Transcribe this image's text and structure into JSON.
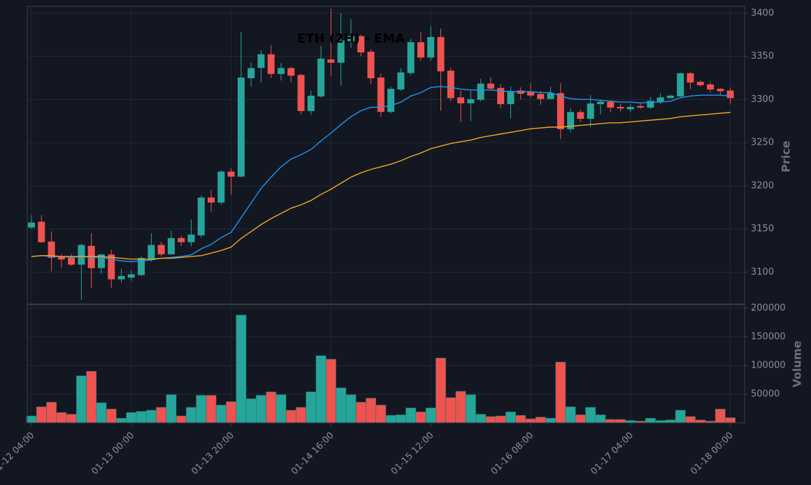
{
  "chart_data": {
    "type": "candlestick",
    "title": "ETH (2H) - EMA",
    "categories": [
      "01-12 04:00",
      null,
      null,
      null,
      null,
      null,
      null,
      null,
      null,
      null,
      "01-13 00:00",
      null,
      null,
      null,
      null,
      null,
      null,
      null,
      null,
      null,
      "01-13 20:00",
      null,
      null,
      null,
      null,
      null,
      null,
      null,
      null,
      null,
      "01-14 16:00",
      null,
      null,
      null,
      null,
      null,
      null,
      null,
      null,
      null,
      "01-15 12:00",
      null,
      null,
      null,
      null,
      null,
      null,
      null,
      null,
      null,
      "01-16 08:00",
      null,
      null,
      null,
      null,
      null,
      null,
      null,
      null,
      null,
      "01-17 04:00",
      null,
      null,
      null,
      null,
      null,
      null,
      null,
      null,
      null,
      "01-18 00:00"
    ],
    "open": [
      3152,
      3158,
      3135,
      3117,
      3116,
      3109,
      3130,
      3105,
      3120,
      3092,
      3094,
      3097,
      3116,
      3131,
      3121,
      3139,
      3135,
      3143,
      3186,
      3181,
      3216,
      3211,
      3325,
      3337,
      3352,
      3330,
      3336,
      3328,
      3287,
      3304,
      3346,
      3343,
      3368,
      3373,
      3355,
      3325,
      3286,
      3312,
      3331,
      3366,
      3349,
      3372,
      3333,
      3302,
      3296,
      3300,
      3318,
      3313,
      3295,
      3310,
      3308,
      3306,
      3301,
      3307,
      3266,
      3285,
      3278,
      3295,
      3297,
      3291,
      3289,
      3292,
      3291,
      3298,
      3302,
      3304,
      3330,
      3320,
      3317,
      3312,
      3310
    ],
    "high": [
      3166,
      3166,
      3147,
      3121,
      3121,
      3133,
      3145,
      3121,
      3126,
      3104,
      3102,
      3118,
      3145,
      3135,
      3148,
      3142,
      3161,
      3189,
      3195,
      3218,
      3220,
      3378,
      3343,
      3357,
      3363,
      3342,
      3338,
      3330,
      3310,
      3362,
      3405,
      3400,
      3393,
      3375,
      3358,
      3330,
      3315,
      3336,
      3370,
      3378,
      3385,
      3382,
      3337,
      3310,
      3310,
      3324,
      3326,
      3318,
      3315,
      3314,
      3319,
      3310,
      3315,
      3319,
      3290,
      3288,
      3305,
      3300,
      3299,
      3295,
      3295,
      3295,
      3303,
      3307,
      3306,
      3331,
      3332,
      3322,
      3320,
      3313,
      3314
    ],
    "low": [
      3150,
      3134,
      3101,
      3105,
      3107,
      3068,
      3082,
      3098,
      3082,
      3088,
      3090,
      3095,
      3112,
      3118,
      3120,
      3130,
      3130,
      3140,
      3170,
      3178,
      3190,
      3210,
      3315,
      3320,
      3325,
      3322,
      3320,
      3283,
      3282,
      3302,
      3327,
      3316,
      3360,
      3350,
      3318,
      3280,
      3284,
      3310,
      3328,
      3345,
      3345,
      3287,
      3298,
      3274,
      3275,
      3298,
      3310,
      3290,
      3278,
      3300,
      3302,
      3294,
      3300,
      3254,
      3262,
      3274,
      3268,
      3283,
      3285,
      3286,
      3285,
      3289,
      3289,
      3295,
      3302,
      3302,
      3312,
      3315,
      3308,
      3305,
      3295
    ],
    "close": [
      3157,
      3135,
      3117,
      3115,
      3109,
      3131,
      3105,
      3120,
      3092,
      3095,
      3097,
      3116,
      3131,
      3121,
      3139,
      3135,
      3143,
      3186,
      3181,
      3216,
      3211,
      3325,
      3336,
      3352,
      3330,
      3336,
      3328,
      3287,
      3304,
      3347,
      3343,
      3368,
      3373,
      3355,
      3325,
      3286,
      3312,
      3331,
      3366,
      3349,
      3372,
      3333,
      3302,
      3296,
      3300,
      3318,
      3313,
      3295,
      3309,
      3307,
      3305,
      3301,
      3307,
      3266,
      3285,
      3278,
      3295,
      3297,
      3291,
      3290,
      3291,
      3291,
      3298,
      3302,
      3304,
      3330,
      3320,
      3317,
      3312,
      3310,
      3302
    ],
    "up_color": "#26a69a",
    "down_color": "#ef5350",
    "lines": [
      {
        "color": "#2196f3",
        "values": [
          3118,
          3119,
          3118,
          3118,
          3117,
          3118,
          3117,
          3117,
          3115,
          3113,
          3112,
          3113,
          3114,
          3116,
          3117,
          3118,
          3120,
          3127,
          3132,
          3140,
          3146,
          3163,
          3180,
          3197,
          3210,
          3222,
          3231,
          3236,
          3242,
          3252,
          3261,
          3271,
          3280,
          3287,
          3291,
          3291,
          3293,
          3297,
          3304,
          3308,
          3314,
          3315,
          3314,
          3312,
          3311,
          3311,
          3311,
          3310,
          3309,
          3309,
          3309,
          3308,
          3308,
          3304,
          3301,
          3300,
          3300,
          3299,
          3298,
          3297,
          3297,
          3296,
          3297,
          3297,
          3298,
          3302,
          3304,
          3305,
          3305,
          3305,
          3304
        ]
      },
      {
        "color": "#f5a623",
        "values": [
          3118,
          3119,
          3119,
          3118,
          3118,
          3118,
          3118,
          3118,
          3117,
          3116,
          3115,
          3115,
          3115,
          3116,
          3116,
          3117,
          3118,
          3119,
          3122,
          3125,
          3129,
          3139,
          3147,
          3155,
          3162,
          3168,
          3174,
          3178,
          3183,
          3190,
          3196,
          3203,
          3210,
          3215,
          3219,
          3222,
          3225,
          3229,
          3234,
          3238,
          3243,
          3246,
          3249,
          3251,
          3253,
          3256,
          3258,
          3260,
          3262,
          3264,
          3266,
          3267,
          3268,
          3268,
          3269,
          3270,
          3271,
          3272,
          3273,
          3273,
          3274,
          3275,
          3276,
          3277,
          3278,
          3280,
          3281,
          3282,
          3283,
          3284,
          3285
        ]
      }
    ],
    "ylabel": "Price",
    "ylim": [
      3063,
      3408
    ],
    "yticks": [
      3100,
      3150,
      3200,
      3250,
      3300,
      3350,
      3400
    ],
    "grid": true,
    "volume": {
      "ylabel": "Volume",
      "ylim": [
        0,
        206000
      ],
      "yticks": [
        50000,
        100000,
        150000,
        200000
      ],
      "values": [
        12000,
        28000,
        36000,
        18000,
        15000,
        82000,
        90000,
        35000,
        24000,
        8000,
        18000,
        20000,
        22000,
        27000,
        49000,
        12000,
        27000,
        48000,
        48000,
        31000,
        37000,
        188000,
        42000,
        48000,
        54000,
        49000,
        22000,
        27000,
        54000,
        117000,
        111000,
        61000,
        49000,
        36000,
        43000,
        31000,
        13000,
        14000,
        26000,
        19000,
        26000,
        113000,
        44000,
        55000,
        49000,
        15000,
        11000,
        12000,
        19000,
        13000,
        7000,
        10000,
        8000,
        106000,
        28000,
        14000,
        27000,
        14000,
        6000,
        6000,
        4000,
        3000,
        8000,
        4000,
        5000,
        22000,
        11000,
        5000,
        3000,
        24000,
        9000
      ]
    }
  }
}
